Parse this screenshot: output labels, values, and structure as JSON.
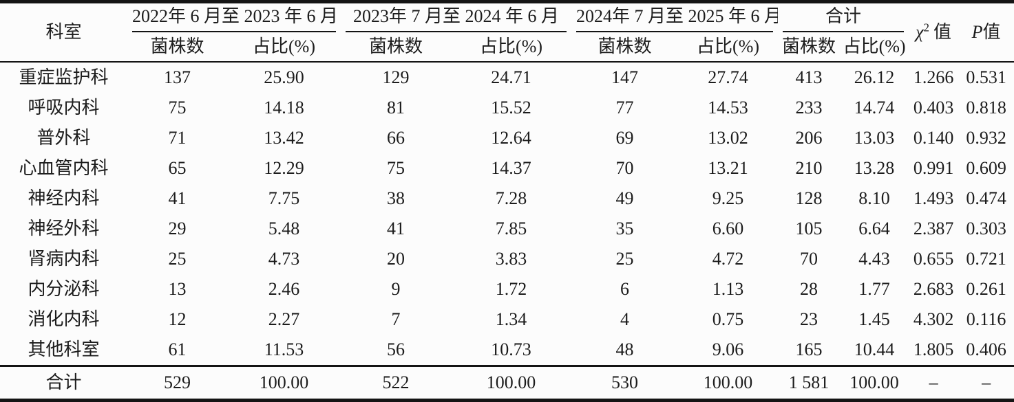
{
  "table": {
    "corner_label": "科室",
    "groups": [
      {
        "label": "2022年 6 月至 2023 年 6 月",
        "subs": [
          "菌株数",
          "占比(%)"
        ]
      },
      {
        "label": "2023年 7 月至 2024 年 6 月",
        "subs": [
          "菌株数",
          "占比(%)"
        ]
      },
      {
        "label": "2024年 7 月至 2025 年 6 月",
        "subs": [
          "菌株数",
          "占比(%)"
        ]
      },
      {
        "label": "合计",
        "subs": [
          "菌株数",
          "占比(%)"
        ]
      }
    ],
    "chi_header": {
      "symbol": "χ",
      "sup": "2",
      "suffix": "值"
    },
    "p_header": {
      "symbol": "P",
      "suffix": "值"
    },
    "rows": [
      {
        "dept": "重症监护科",
        "values": [
          "137",
          "25.90",
          "129",
          "24.71",
          "147",
          "27.74",
          "413",
          "26.12",
          "1.266",
          "0.531"
        ]
      },
      {
        "dept": "呼吸内科",
        "values": [
          "75",
          "14.18",
          "81",
          "15.52",
          "77",
          "14.53",
          "233",
          "14.74",
          "0.403",
          "0.818"
        ]
      },
      {
        "dept": "普外科",
        "values": [
          "71",
          "13.42",
          "66",
          "12.64",
          "69",
          "13.02",
          "206",
          "13.03",
          "0.140",
          "0.932"
        ]
      },
      {
        "dept": "心血管内科",
        "values": [
          "65",
          "12.29",
          "75",
          "14.37",
          "70",
          "13.21",
          "210",
          "13.28",
          "0.991",
          "0.609"
        ]
      },
      {
        "dept": "神经内科",
        "values": [
          "41",
          "7.75",
          "38",
          "7.28",
          "49",
          "9.25",
          "128",
          "8.10",
          "1.493",
          "0.474"
        ]
      },
      {
        "dept": "神经外科",
        "values": [
          "29",
          "5.48",
          "41",
          "7.85",
          "35",
          "6.60",
          "105",
          "6.64",
          "2.387",
          "0.303"
        ]
      },
      {
        "dept": "肾病内科",
        "values": [
          "25",
          "4.73",
          "20",
          "3.83",
          "25",
          "4.72",
          "70",
          "4.43",
          "0.655",
          "0.721"
        ]
      },
      {
        "dept": "内分泌科",
        "values": [
          "13",
          "2.46",
          "9",
          "1.72",
          "6",
          "1.13",
          "28",
          "1.77",
          "2.683",
          "0.261"
        ]
      },
      {
        "dept": "消化内科",
        "values": [
          "12",
          "2.27",
          "7",
          "1.34",
          "4",
          "0.75",
          "23",
          "1.45",
          "4.302",
          "0.116"
        ]
      },
      {
        "dept": "其他科室",
        "values": [
          "61",
          "11.53",
          "56",
          "10.73",
          "48",
          "9.06",
          "165",
          "10.44",
          "1.805",
          "0.406"
        ]
      }
    ],
    "footer": {
      "dept": "合计",
      "values": [
        "529",
        "100.00",
        "522",
        "100.00",
        "530",
        "100.00",
        "1 581",
        "100.00",
        "–",
        "–"
      ]
    }
  }
}
